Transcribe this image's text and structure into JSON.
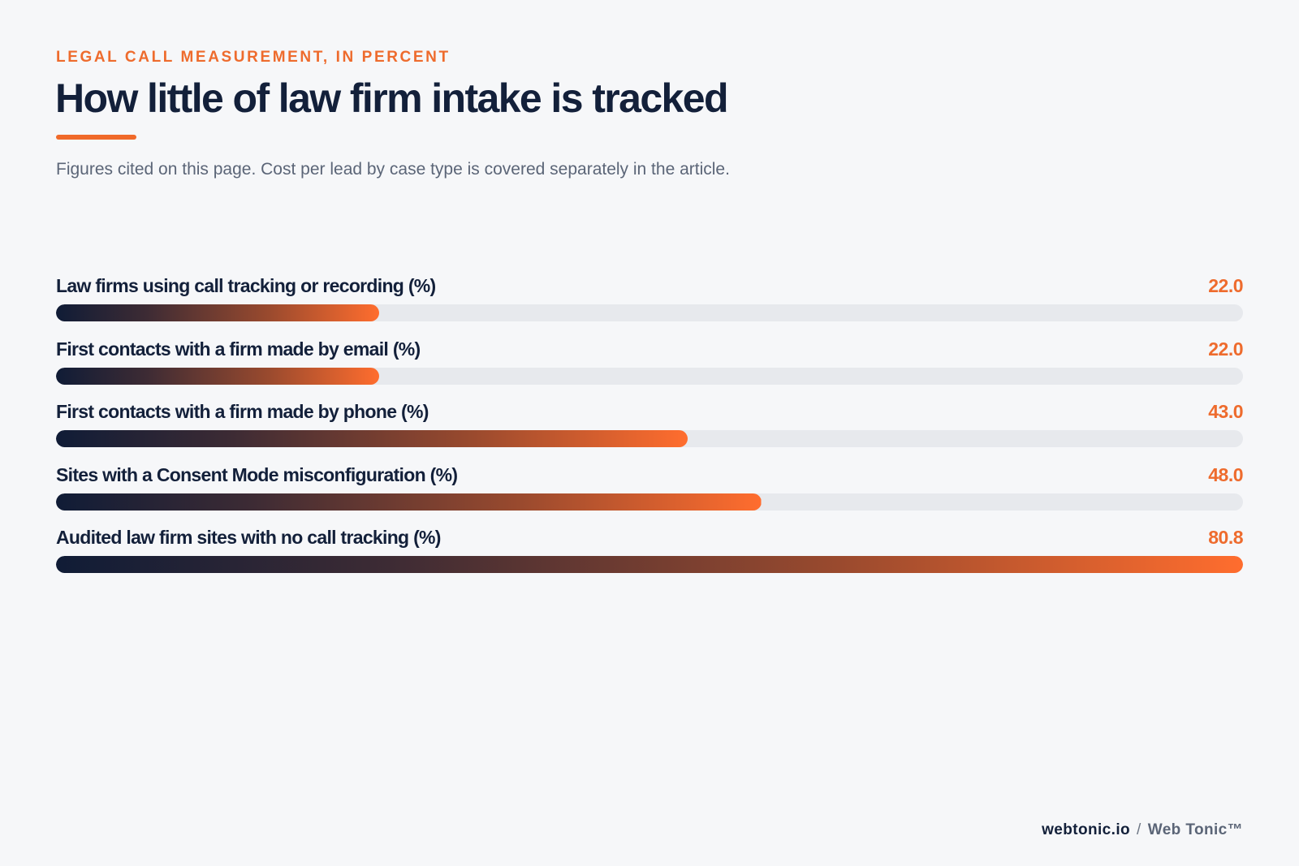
{
  "header": {
    "kicker": "LEGAL CALL MEASUREMENT, IN PERCENT",
    "title": "How little of law firm intake is tracked",
    "subtitle": "Figures cited on this page. Cost per lead by case type is covered separately in the article."
  },
  "chart_data": {
    "type": "bar",
    "orientation": "horizontal",
    "categories": [
      "Law firms using call tracking or recording (%)",
      "First contacts with a firm made by email (%)",
      "First contacts with a firm made by phone (%)",
      "Sites with a Consent Mode misconfiguration (%)",
      "Audited law firm sites with no call tracking (%)"
    ],
    "values": [
      22.0,
      22.0,
      43.0,
      48.0,
      80.8
    ],
    "value_labels": [
      "22.0",
      "22.0",
      "43.0",
      "48.0",
      "80.8"
    ],
    "xlim": [
      0,
      80.8
    ],
    "colors": {
      "bar_start": "#101c36",
      "bar_end": "#ff6d2e",
      "track": "#e7e9ed",
      "value_text": "#ee6b2d"
    }
  },
  "footer": {
    "domain": "webtonic.io",
    "separator": "/",
    "brand": "Web Tonic™"
  }
}
